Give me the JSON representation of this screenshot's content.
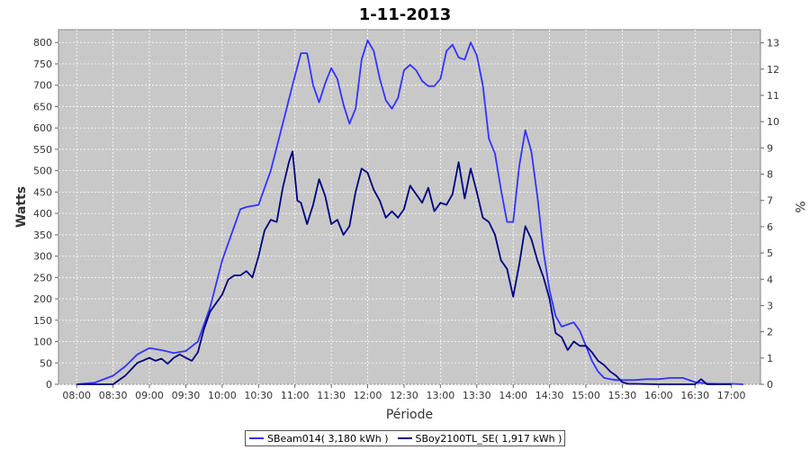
{
  "chart_data": {
    "type": "line",
    "title": "1-11-2013",
    "xlabel": "Période",
    "ylabel": "Watts",
    "y2label": "%",
    "ylim": [
      0,
      830
    ],
    "y2lim": [
      0,
      13.5
    ],
    "xlim": [
      7.75,
      17.4
    ],
    "yticks": [
      0,
      50,
      100,
      150,
      200,
      250,
      300,
      350,
      400,
      450,
      500,
      550,
      600,
      650,
      700,
      750,
      800
    ],
    "y2ticks": [
      0,
      1,
      2,
      3,
      4,
      5,
      6,
      7,
      8,
      9,
      10,
      11,
      12,
      13
    ],
    "x_tick_labels": [
      "08:00",
      "08:30",
      "09:00",
      "09:30",
      "10:00",
      "10:30",
      "11:00",
      "11:30",
      "12:00",
      "12:30",
      "13:00",
      "13:30",
      "14:00",
      "14:30",
      "15:00",
      "15:30",
      "16:00",
      "16:30",
      "17:00"
    ],
    "grid": true,
    "legend_position": "bottom",
    "colors": {
      "plot_background": "#c8c8c8",
      "grid": "#ffffff",
      "series1": "#3333ff",
      "series2": "#000080"
    },
    "series": [
      {
        "name": "SBeam014( 3,180 kWh )",
        "x": [
          "08:00",
          "08:15",
          "08:30",
          "08:40",
          "08:50",
          "09:00",
          "09:10",
          "09:20",
          "09:30",
          "09:40",
          "09:50",
          "10:00",
          "10:10",
          "10:15",
          "10:20",
          "10:30",
          "10:40",
          "10:50",
          "10:58",
          "11:05",
          "11:10",
          "11:15",
          "11:20",
          "11:25",
          "11:30",
          "11:35",
          "11:40",
          "11:45",
          "11:50",
          "11:55",
          "12:00",
          "12:05",
          "12:10",
          "12:15",
          "12:20",
          "12:25",
          "12:30",
          "12:35",
          "12:40",
          "12:45",
          "12:50",
          "12:55",
          "13:00",
          "13:05",
          "13:10",
          "13:15",
          "13:20",
          "13:25",
          "13:30",
          "13:35",
          "13:40",
          "13:45",
          "13:50",
          "13:55",
          "14:00",
          "14:05",
          "14:10",
          "14:15",
          "14:20",
          "14:25",
          "14:30",
          "14:35",
          "14:40",
          "14:45",
          "14:50",
          "14:55",
          "15:00",
          "15:05",
          "15:10",
          "15:15",
          "15:20",
          "15:25",
          "15:30",
          "15:40",
          "15:50",
          "16:00",
          "16:10",
          "16:20",
          "16:30",
          "16:40",
          "16:50",
          "17:00",
          "17:10"
        ],
        "y": [
          0,
          4,
          20,
          42,
          70,
          85,
          80,
          73,
          78,
          100,
          180,
          290,
          370,
          410,
          415,
          420,
          500,
          610,
          700,
          775,
          775,
          700,
          660,
          705,
          740,
          715,
          655,
          610,
          645,
          760,
          805,
          780,
          715,
          665,
          645,
          670,
          735,
          748,
          735,
          710,
          698,
          698,
          715,
          780,
          795,
          765,
          760,
          800,
          770,
          700,
          575,
          540,
          455,
          380,
          380,
          510,
          595,
          545,
          440,
          310,
          220,
          160,
          135,
          140,
          145,
          125,
          90,
          55,
          30,
          15,
          12,
          10,
          10,
          10,
          12,
          12,
          15,
          15,
          5,
          2,
          1,
          1,
          0
        ]
      },
      {
        "name": "SBoy2100TL_SE( 1,917 kWh )",
        "x": [
          "08:00",
          "08:30",
          "08:40",
          "08:50",
          "09:00",
          "09:05",
          "09:10",
          "09:15",
          "09:20",
          "09:25",
          "09:30",
          "09:35",
          "09:40",
          "09:45",
          "09:50",
          "10:00",
          "10:05",
          "10:10",
          "10:15",
          "10:20",
          "10:25",
          "10:30",
          "10:35",
          "10:40",
          "10:45",
          "10:50",
          "10:55",
          "10:58",
          "11:02",
          "11:05",
          "11:10",
          "11:15",
          "11:20",
          "11:25",
          "11:30",
          "11:35",
          "11:40",
          "11:45",
          "11:50",
          "11:55",
          "12:00",
          "12:05",
          "12:10",
          "12:15",
          "12:20",
          "12:25",
          "12:30",
          "12:35",
          "12:40",
          "12:45",
          "12:50",
          "12:55",
          "13:00",
          "13:05",
          "13:10",
          "13:15",
          "13:20",
          "13:25",
          "13:30",
          "13:35",
          "13:40",
          "13:45",
          "13:50",
          "13:55",
          "14:00",
          "14:05",
          "14:10",
          "14:15",
          "14:20",
          "14:25",
          "14:30",
          "14:35",
          "14:40",
          "14:45",
          "14:50",
          "14:55",
          "15:00",
          "15:05",
          "15:10",
          "15:15",
          "15:20",
          "15:25",
          "15:30",
          "15:35",
          "15:40",
          "16:00",
          "16:30",
          "16:35",
          "16:40",
          "17:00"
        ],
        "y": [
          0,
          0,
          20,
          50,
          62,
          55,
          60,
          48,
          62,
          70,
          62,
          55,
          75,
          130,
          170,
          210,
          245,
          255,
          255,
          265,
          250,
          300,
          360,
          385,
          380,
          460,
          520,
          545,
          430,
          425,
          375,
          420,
          480,
          440,
          375,
          385,
          350,
          370,
          450,
          505,
          495,
          455,
          430,
          390,
          405,
          390,
          410,
          465,
          445,
          425,
          460,
          405,
          425,
          420,
          445,
          520,
          435,
          505,
          450,
          390,
          380,
          350,
          290,
          270,
          205,
          280,
          370,
          340,
          290,
          250,
          200,
          120,
          110,
          80,
          100,
          90,
          90,
          75,
          55,
          45,
          30,
          20,
          5,
          1,
          1,
          0,
          0,
          12,
          0,
          0
        ]
      }
    ]
  }
}
